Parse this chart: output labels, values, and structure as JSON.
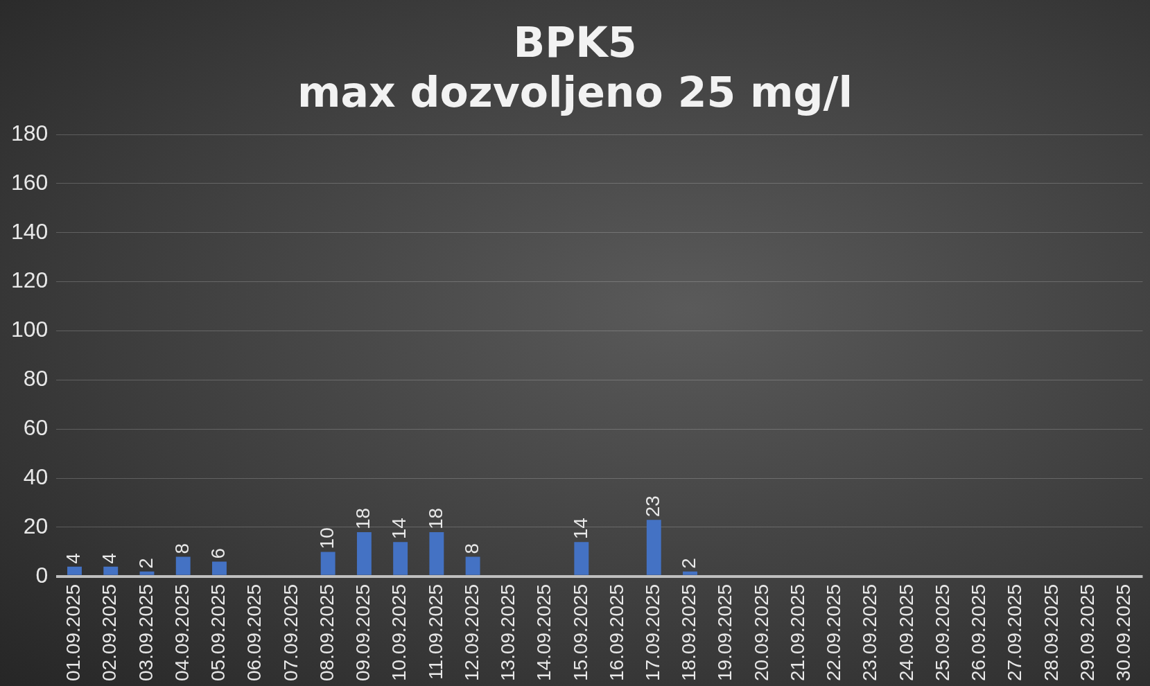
{
  "chart_data": {
    "type": "bar",
    "title": "BPK5",
    "subtitle": "max dozvoljeno 25 mg/l",
    "categories": [
      "01.09.2025",
      "02.09.2025",
      "03.09.2025",
      "04.09.2025",
      "05.09.2025",
      "06.09.2025",
      "07.09.2025",
      "08.09.2025",
      "09.09.2025",
      "10.09.2025",
      "11.09.2025",
      "12.09.2025",
      "13.09.2025",
      "14.09.2025",
      "15.09.2025",
      "16.09.2025",
      "17.09.2025",
      "18.09.2025",
      "19.09.2025",
      "20.09.2025",
      "21.09.2025",
      "22.09.2025",
      "23.09.2025",
      "24.09.2025",
      "25.09.2025",
      "26.09.2025",
      "27.09.2025",
      "28.09.2025",
      "29.09.2025",
      "30.09.2025"
    ],
    "values": [
      4,
      4,
      2,
      8,
      6,
      null,
      null,
      10,
      18,
      14,
      18,
      8,
      null,
      null,
      14,
      null,
      23,
      2,
      null,
      null,
      null,
      null,
      null,
      null,
      null,
      null,
      null,
      null,
      null,
      null
    ],
    "color": "#4472c4",
    "ylim": [
      0,
      180
    ],
    "yticks": [
      0,
      20,
      40,
      60,
      80,
      100,
      120,
      140,
      160,
      180
    ],
    "grid": "y",
    "legend": false,
    "data_labels": true
  }
}
